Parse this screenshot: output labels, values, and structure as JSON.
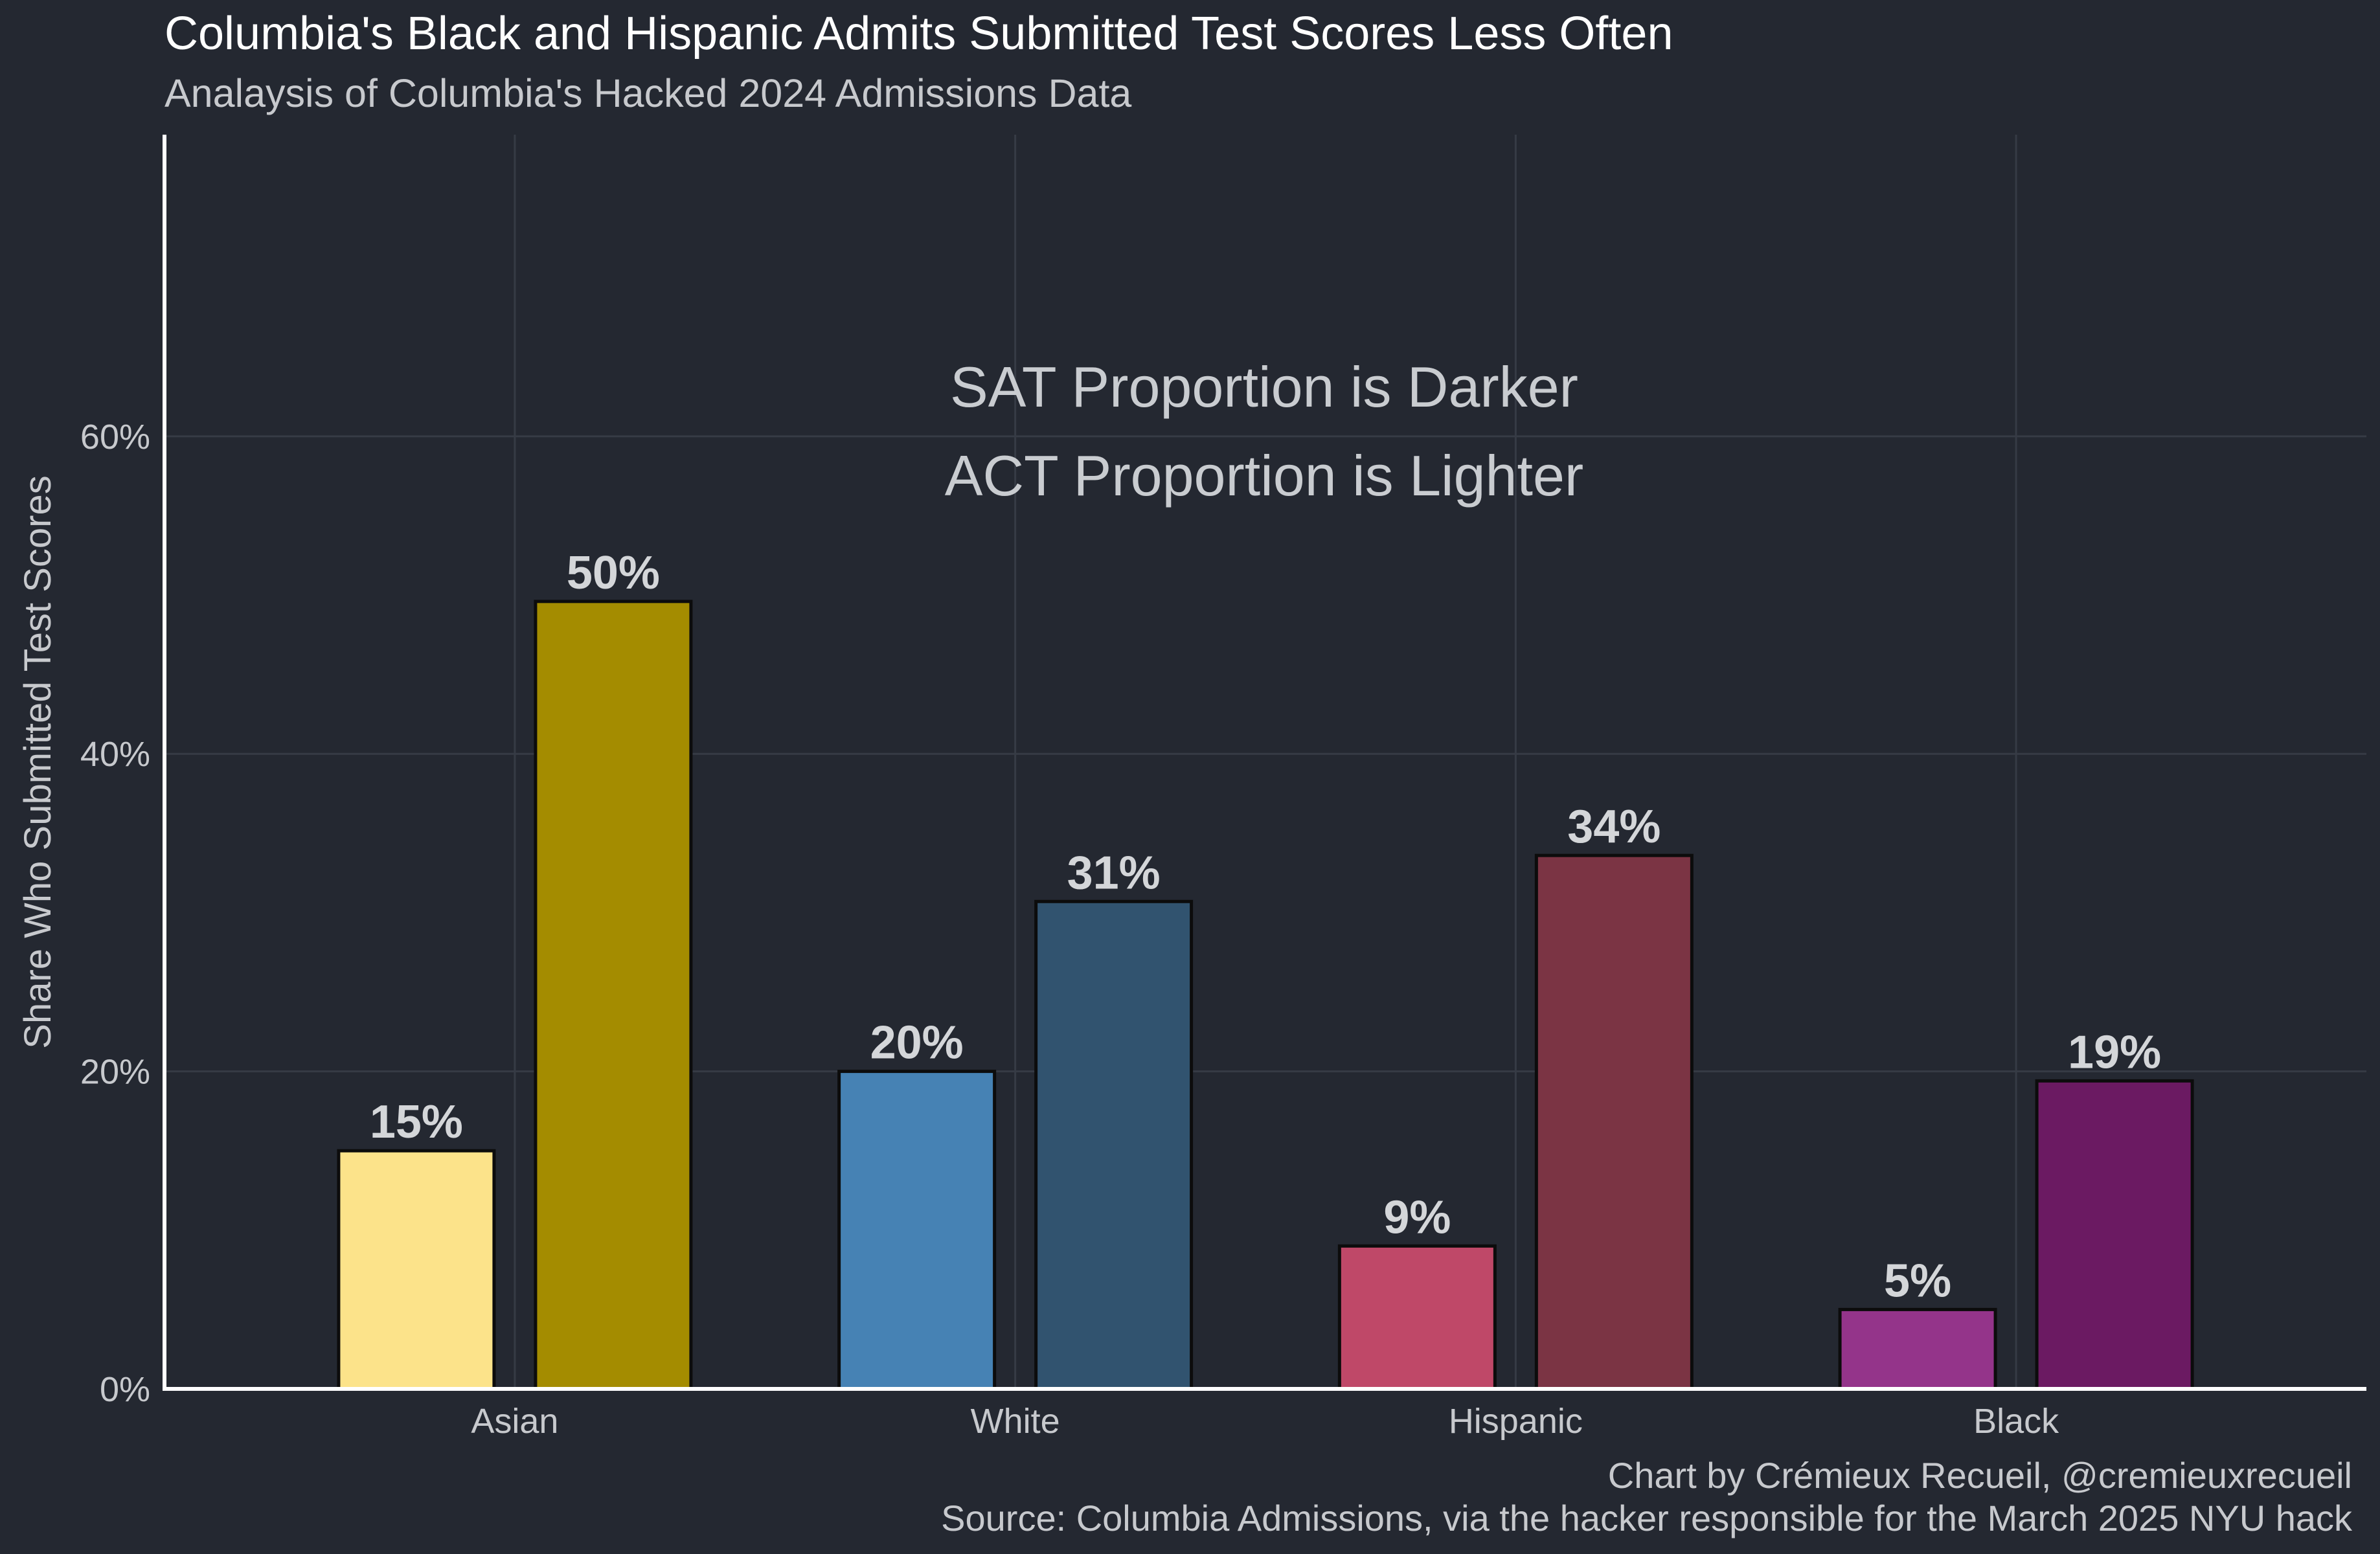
{
  "chart_data": {
    "type": "bar",
    "title": "Columbia's Black and Hispanic Admits Submitted Test Scores Less Often",
    "subtitle": "Analaysis of Columbia's Hacked 2024 Admissions Data",
    "xlabel": "",
    "ylabel": "Share Who Submitted Test Scores",
    "ylim": [
      0,
      79
    ],
    "yticks": [
      0,
      20,
      40,
      60
    ],
    "ytick_labels": [
      "0%",
      "20%",
      "40%",
      "60%"
    ],
    "grid": true,
    "categories": [
      "Asian",
      "White",
      "Hispanic",
      "Black"
    ],
    "series": [
      {
        "name": "ACT",
        "values": [
          15,
          20,
          9,
          5
        ]
      },
      {
        "name": "SAT",
        "values": [
          49.6,
          30.7,
          33.6,
          19.4
        ]
      }
    ],
    "value_labels": [
      [
        "15%",
        "50%"
      ],
      [
        "20%",
        "31%"
      ],
      [
        "9%",
        "34%"
      ],
      [
        "5%",
        "19%"
      ]
    ],
    "bar_colors": [
      [
        "#fce38a",
        "#a48c00"
      ],
      [
        "#4682b4",
        "#31536f"
      ],
      [
        "#bf4868",
        "#7b3444"
      ],
      [
        "#94348a",
        "#6b1a62"
      ]
    ],
    "annotations": [
      "SAT Proportion is Darker",
      "ACT Proportion is Lighter"
    ],
    "caption": [
      "Chart by Crémieux Recueil, @cremieuxrecueil",
      "Source: Columbia Admissions, via the hacker responsible for the March 2025 NYU hack"
    ]
  }
}
